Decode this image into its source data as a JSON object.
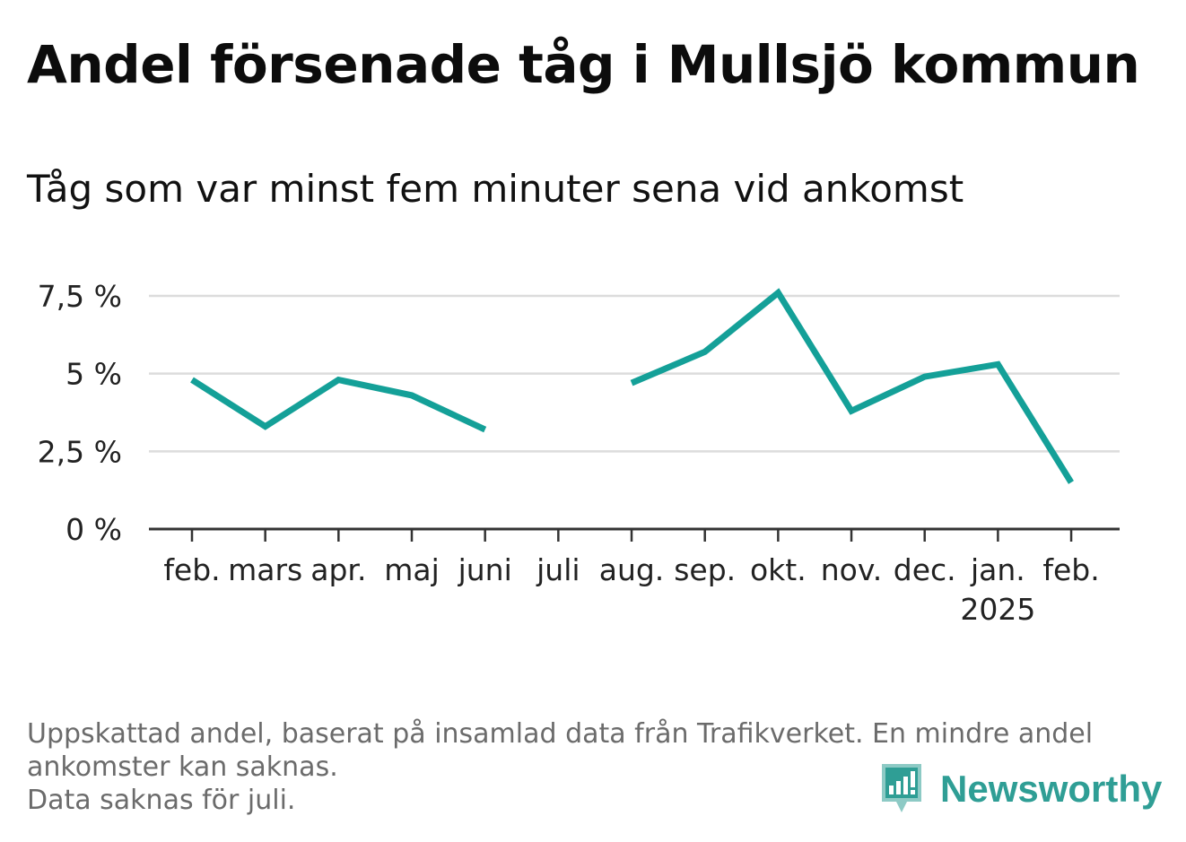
{
  "header": {
    "title": "Andel försenade tåg i Mullsjö kommun",
    "subtitle": "Tåg som var minst fem minuter sena vid ankomst"
  },
  "chart_data": {
    "type": "line",
    "categories": [
      "feb.",
      "mars",
      "apr.",
      "maj",
      "juni",
      "juli",
      "aug.",
      "sep.",
      "okt.",
      "nov.",
      "dec.",
      "jan.",
      "feb."
    ],
    "category_sublabels": [
      "",
      "",
      "",
      "",
      "",
      "",
      "",
      "",
      "",
      "",
      "",
      "2025",
      ""
    ],
    "series": [
      {
        "values": [
          4.8,
          3.3,
          4.8,
          4.3,
          3.2,
          null,
          4.7,
          5.7,
          7.6,
          3.8,
          4.9,
          5.3,
          1.5
        ],
        "color": "#14a098"
      }
    ],
    "yticks": [
      {
        "value": 0,
        "label": "0 %"
      },
      {
        "value": 2.5,
        "label": "2,5 %"
      },
      {
        "value": 5,
        "label": "5 %"
      },
      {
        "value": 7.5,
        "label": "7,5 %"
      }
    ],
    "ylim": [
      0,
      7.5
    ],
    "grid": true,
    "legend": "none"
  },
  "footnote": {
    "line1": "Uppskattad andel, baserat på insamlad data från Trafikverket. En mindre andel",
    "line2": "ankomster kan saknas.",
    "line3": "Data saknas för juli."
  },
  "brand": {
    "name": "Newsworthy",
    "icon": "newsworthy-logo-icon",
    "color": "#2f9e95"
  }
}
